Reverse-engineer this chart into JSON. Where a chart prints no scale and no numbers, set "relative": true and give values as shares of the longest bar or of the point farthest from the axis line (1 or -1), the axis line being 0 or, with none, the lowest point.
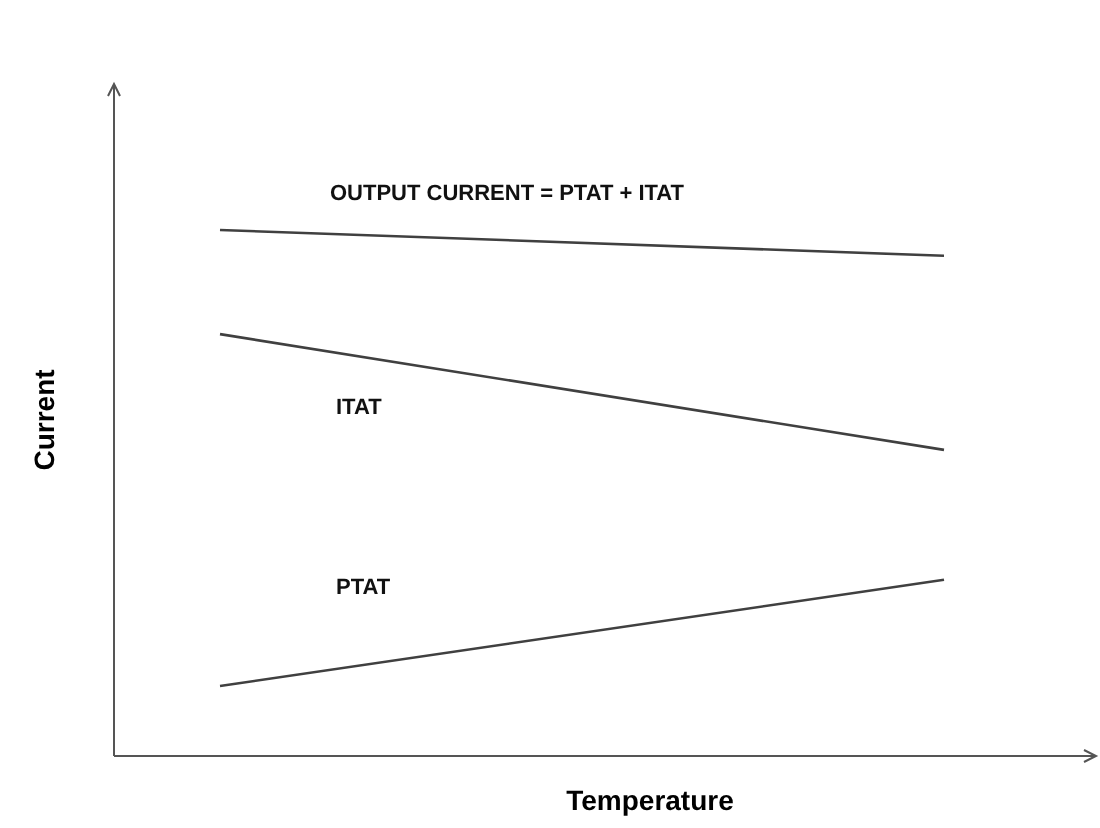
{
  "chart_data": {
    "type": "line",
    "xlabel": "Temperature",
    "ylabel": "Current",
    "relative": true,
    "categories": [
      null,
      null
    ],
    "series": [
      {
        "name": "OUTPUT CURRENT = PTAT + ITAT",
        "color": "#404040",
        "values": [
          1,
          0.951
        ]
      },
      {
        "name": "ITAT",
        "color": "#404040",
        "values": [
          0.802,
          0.582
        ]
      },
      {
        "name": "PTAT",
        "color": "#404040",
        "values": [
          0.133,
          0.335
        ]
      }
    ]
  }
}
